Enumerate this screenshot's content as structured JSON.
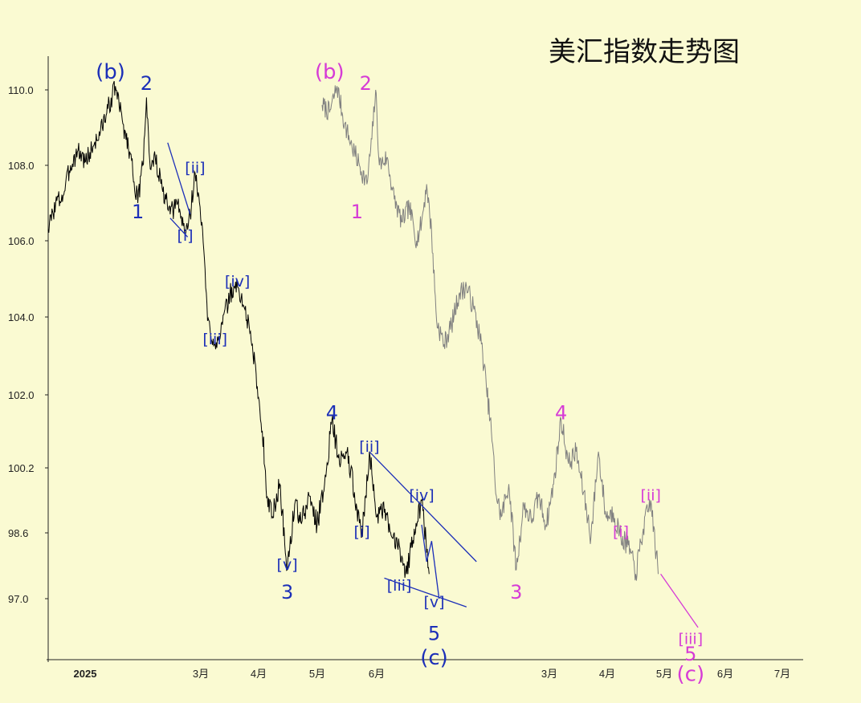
{
  "chart_data": {
    "type": "line",
    "title": "美汇指数走势图",
    "y_ticks": [
      110.0,
      108.0,
      106.0,
      104.0,
      102.0,
      100.2,
      98.6,
      97.0
    ],
    "x_ticks_left": [
      "2025",
      "3月",
      "4月",
      "5月",
      "6月"
    ],
    "x_ticks_right": [
      "3月",
      "4月",
      "5月",
      "6月",
      "7月"
    ],
    "series": [
      {
        "color": "#000000",
        "anchors": [
          [
            0,
            106.3
          ],
          [
            3,
            107.0
          ],
          [
            6,
            107.2
          ],
          [
            9,
            108.0
          ],
          [
            12,
            108.4
          ],
          [
            15,
            108.1
          ],
          [
            18,
            108.5
          ],
          [
            21,
            108.9
          ],
          [
            24,
            109.5
          ],
          [
            27,
            110.1
          ],
          [
            30,
            109.1
          ],
          [
            33,
            108.3
          ],
          [
            36,
            107.0
          ],
          [
            38,
            108.0
          ],
          [
            39.5,
            109.8
          ],
          [
            41,
            107.9
          ],
          [
            43,
            108.2
          ],
          [
            46,
            107.3
          ],
          [
            49,
            106.7
          ],
          [
            52,
            107.0
          ],
          [
            55,
            106.2
          ],
          [
            57,
            106.7
          ],
          [
            59,
            107.8
          ],
          [
            62,
            106.3
          ],
          [
            64,
            103.9
          ],
          [
            67,
            103.3
          ],
          [
            70,
            103.8
          ],
          [
            73,
            104.6
          ],
          [
            76,
            104.8
          ],
          [
            79,
            104.2
          ],
          [
            82,
            103.3
          ],
          [
            84,
            102.2
          ],
          [
            86,
            101.1
          ],
          [
            88,
            99.5
          ],
          [
            90,
            99.0
          ],
          [
            93,
            99.8
          ],
          [
            96,
            97.7
          ],
          [
            99,
            99.3
          ],
          [
            102,
            98.9
          ],
          [
            105,
            99.5
          ],
          [
            108,
            98.8
          ],
          [
            111,
            99.8
          ],
          [
            114,
            101.4
          ],
          [
            117,
            100.3
          ],
          [
            120,
            100.6
          ],
          [
            123,
            99.6
          ],
          [
            126,
            98.5
          ],
          [
            129,
            100.6
          ],
          [
            132,
            99.0
          ],
          [
            135,
            99.1
          ],
          [
            138,
            98.5
          ],
          [
            141,
            98.3
          ],
          [
            144,
            97.6
          ],
          [
            147,
            98.7
          ],
          [
            150,
            99.4
          ],
          [
            153,
            97.6
          ]
        ]
      },
      {
        "color": "#808080",
        "anchors": [
          [
            110,
            109.6
          ],
          [
            113,
            109.4
          ],
          [
            116,
            110.1
          ],
          [
            119,
            109.1
          ],
          [
            122,
            108.5
          ],
          [
            125,
            108.0
          ],
          [
            128,
            107.5
          ],
          [
            130,
            108.7
          ],
          [
            131.5,
            110.0
          ],
          [
            133,
            108.0
          ],
          [
            136,
            108.2
          ],
          [
            139,
            107.1
          ],
          [
            142,
            106.5
          ],
          [
            145,
            106.9
          ],
          [
            148,
            106.0
          ],
          [
            150,
            106.5
          ],
          [
            152,
            107.5
          ],
          [
            154,
            106.2
          ],
          [
            156,
            103.9
          ],
          [
            159,
            103.3
          ],
          [
            162,
            103.8
          ],
          [
            165,
            104.6
          ],
          [
            168,
            104.8
          ],
          [
            171,
            104.2
          ],
          [
            174,
            103.3
          ],
          [
            176,
            102.2
          ],
          [
            178,
            101.1
          ],
          [
            180,
            99.5
          ],
          [
            182,
            99.0
          ],
          [
            185,
            99.8
          ],
          [
            188,
            97.7
          ],
          [
            191,
            99.3
          ],
          [
            194,
            98.9
          ],
          [
            197,
            99.5
          ],
          [
            200,
            98.8
          ],
          [
            203,
            99.8
          ],
          [
            206,
            101.4
          ],
          [
            209,
            100.3
          ],
          [
            212,
            100.6
          ],
          [
            215,
            99.6
          ],
          [
            218,
            98.5
          ],
          [
            221,
            100.6
          ],
          [
            224,
            99.0
          ],
          [
            227,
            99.1
          ],
          [
            230,
            98.5
          ],
          [
            233,
            98.3
          ],
          [
            236,
            97.6
          ],
          [
            239,
            98.7
          ],
          [
            242,
            99.4
          ],
          [
            245,
            97.6
          ]
        ]
      }
    ],
    "labels_left": [
      {
        "text": "(b)",
        "x": 25,
        "y": 110.3
      },
      {
        "text": "2",
        "x": 39.5,
        "y": 110.0
      },
      {
        "text": "1",
        "x": 36,
        "y": 106.6
      },
      {
        "text": "[ii]",
        "x": 59,
        "y": 107.8
      },
      {
        "text": "[i]",
        "x": 55,
        "y": 106.0
      },
      {
        "text": "[iv]",
        "x": 76,
        "y": 104.8
      },
      {
        "text": "[iii]",
        "x": 67,
        "y": 103.3
      },
      {
        "text": "4",
        "x": 114,
        "y": 101.4
      },
      {
        "text": "3",
        "x": 96,
        "y": 97.0
      },
      {
        "text": "[v]",
        "x": 96,
        "y": 97.7
      },
      {
        "text": "[ii]",
        "x": 129,
        "y": 100.6
      },
      {
        "text": "[i]",
        "x": 126,
        "y": 98.5
      },
      {
        "text": "[iv]",
        "x": 150,
        "y": 99.4
      },
      {
        "text": "[iii]",
        "x": 141,
        "y": 97.2
      },
      {
        "text": "[v]",
        "x": 155,
        "y": 96.8
      },
      {
        "text": "5",
        "x": 155,
        "y": 96.0
      },
      {
        "text": "(c)",
        "x": 155,
        "y": 95.4
      }
    ],
    "labels_right": [
      {
        "text": "(b)",
        "x": 113,
        "y": 110.3
      },
      {
        "text": "2",
        "x": 127.5,
        "y": 110.0
      },
      {
        "text": "1",
        "x": 124,
        "y": 106.6
      },
      {
        "text": "4",
        "x": 206,
        "y": 101.4
      },
      {
        "text": "3",
        "x": 188,
        "y": 97.0
      },
      {
        "text": "[ii]",
        "x": 242,
        "y": 99.4
      },
      {
        "text": "[i]",
        "x": 230,
        "y": 98.5
      },
      {
        "text": "[iii]",
        "x": 258,
        "y": 95.9
      },
      {
        "text": "5",
        "x": 258,
        "y": 95.5
      },
      {
        "text": "(c)",
        "x": 258,
        "y": 95.0
      }
    ]
  }
}
